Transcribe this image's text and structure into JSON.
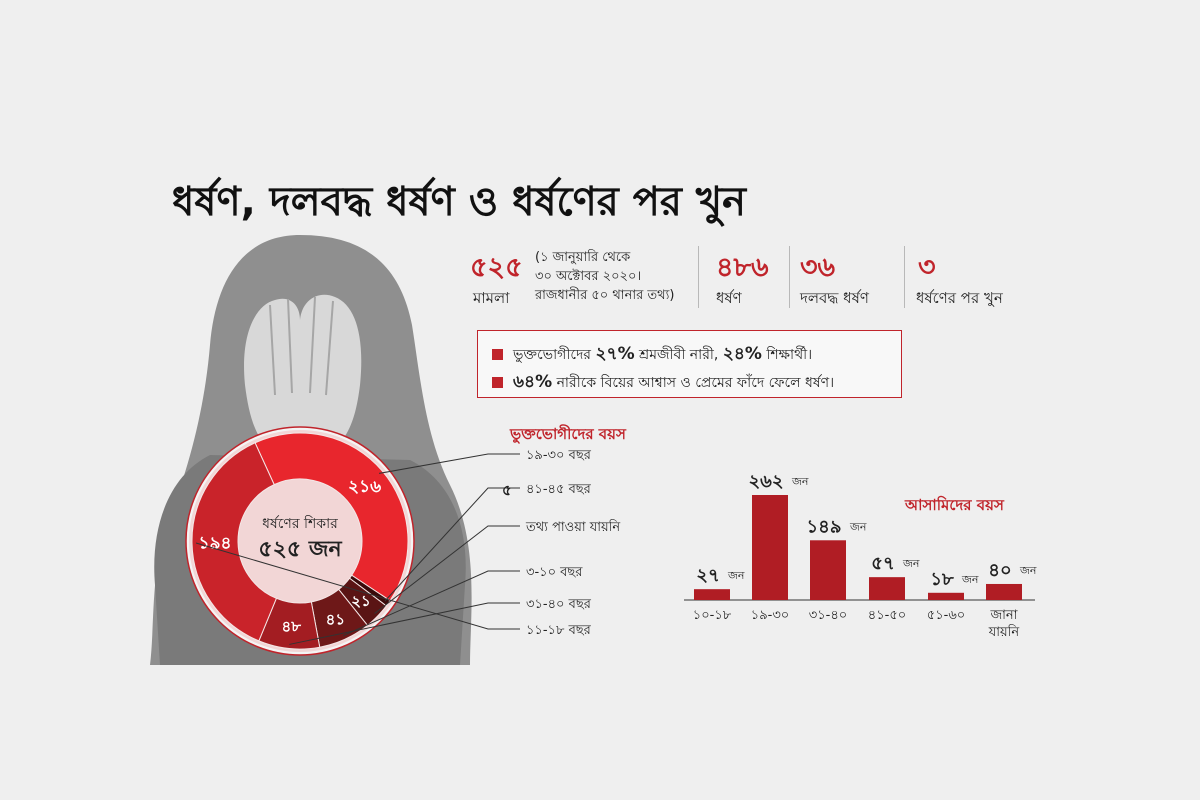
{
  "title": "ধর্ষণ, দলবদ্ধ ধর্ষণ ও ধর্ষণের পর খুন",
  "stats": {
    "cases": {
      "number": "৫২৫",
      "label": "মামলা",
      "note": [
        "(১ জানুয়ারি থেকে",
        "৩০ অক্টোবর ২০২০।",
        "রাজধানীর ৫০ থানার তথ্য)"
      ]
    },
    "rape": {
      "number": "৪৮৬",
      "label": "ধর্ষণ"
    },
    "gang_rape": {
      "number": "৩৬",
      "label": "দলবদ্ধ ধর্ষণ"
    },
    "murder": {
      "number": "৩",
      "label": "ধর্ষণের পর খুন"
    }
  },
  "notes": {
    "line1": {
      "a": "ভুক্তভোগীদের ",
      "b": "২৭%",
      "c": " শ্রমজীবী নারী, ",
      "d": "২৪%",
      "e": " শিক্ষার্থী।"
    },
    "line2": {
      "a": "৬৪%",
      "b": " নারীকে বিয়ের আশ্বাস ও প্রেমের ফাঁদে ফেলে ধর্ষণ।"
    }
  },
  "colors": {
    "accent": "#c0242b",
    "dark": "#5a1414",
    "mid": "#8a1a1f",
    "bright": "#e8262d",
    "ring": "#f2d6d6"
  },
  "chart_data": [
    {
      "type": "pie",
      "title": "ভুক্তভোগীদের বয়স",
      "center_label": "ধর্ষণের শিকার",
      "center_value": "৫২৫ জন",
      "slices": [
        {
          "name": "১৯-৩০ বছর",
          "value": 216,
          "label": "২১৬",
          "color": "#e8262d"
        },
        {
          "name": "৪১-৪৫ বছর",
          "value": 5,
          "label": "৫",
          "color": "#3a0a0a"
        },
        {
          "name": "তথ্য পাওয়া যায়নি",
          "value": 21,
          "label": "২১",
          "color": "#5a1414"
        },
        {
          "name": "৩-১০ বছর",
          "value": 41,
          "label": "৪১",
          "color": "#6e1818"
        },
        {
          "name": "৩১-৪০ বছর",
          "value": 48,
          "label": "৪৮",
          "color": "#a31d22"
        },
        {
          "name": "১১-১৮ বছর",
          "value": 194,
          "label": "১৯৪",
          "color": "#c9232a"
        }
      ]
    },
    {
      "type": "bar",
      "title": "আসামিদের বয়স",
      "categories": [
        "১০-১৮",
        "১৯-৩০",
        "৩১-৪০",
        "৪১-৫০",
        "৫১-৬০",
        "জানা যায়নি"
      ],
      "values": [
        27,
        262,
        149,
        57,
        18,
        40
      ],
      "value_labels": [
        "২৭",
        "২৬২",
        "১৪৯",
        "৫৭",
        "১৮",
        "৪০"
      ],
      "unit": "জন",
      "color": "#b01d24"
    }
  ]
}
